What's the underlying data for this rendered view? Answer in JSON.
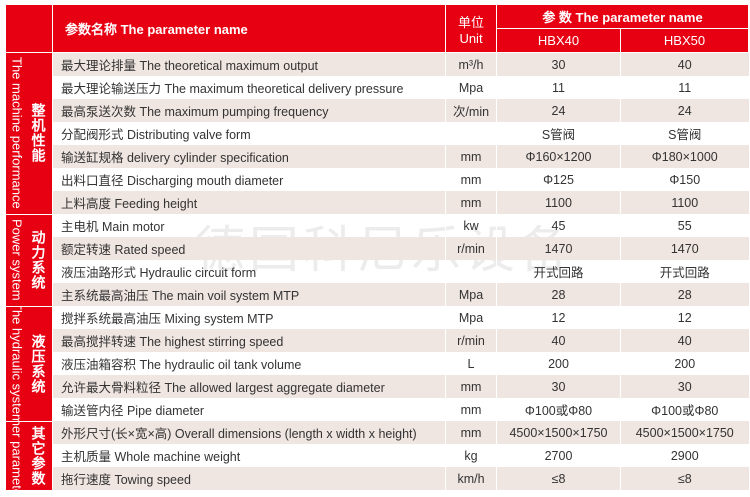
{
  "header": {
    "param_name": "参数名称  The parameter name",
    "unit": "单位",
    "unit_en": "Unit",
    "params": "参 数  The parameter name",
    "models": [
      "HBX40",
      "HBX50"
    ]
  },
  "groups": [
    {
      "zh": "整机性能",
      "en": "The machine performance",
      "rows": [
        {
          "name": "最大理论排量 The theoretical maximum output",
          "unit": "m³/h",
          "v1": "30",
          "v2": "40"
        },
        {
          "name": "最大理论输送压力  The maximum theoretical delivery pressure",
          "unit": "Mpa",
          "v1": "11",
          "v2": "11"
        },
        {
          "name": "最高泵送次数 The maximum pumping frequency",
          "unit": "次/min",
          "v1": "24",
          "v2": "24"
        },
        {
          "name": "分配阀形式 Distributing valve form",
          "unit": "",
          "v1": "S管阀",
          "v2": "S管阀"
        },
        {
          "name": "输送缸规格 delivery cylinder specification",
          "unit": "mm",
          "v1": "Φ160×1200",
          "v2": "Φ180×1000"
        },
        {
          "name": "出料口直径 Discharging mouth diameter",
          "unit": "mm",
          "v1": "Φ125",
          "v2": "Φ150"
        },
        {
          "name": "上料高度 Feeding height",
          "unit": "mm",
          "v1": "1100",
          "v2": "1100"
        }
      ]
    },
    {
      "zh": "动力系统",
      "en": "Power system",
      "rows": [
        {
          "name": "主电机 Main motor",
          "unit": "kw",
          "v1": "45",
          "v2": "55"
        },
        {
          "name": "额定转速 Rated speed",
          "unit": "r/min",
          "v1": "1470",
          "v2": "1470"
        },
        {
          "name": "液压油路形式 Hydraulic circuit form",
          "unit": "",
          "v1": "开式回路",
          "v2": "开式回路"
        },
        {
          "name": "主系统最高油压 The main voil system MTP",
          "unit": "Mpa",
          "v1": "28",
          "v2": "28"
        }
      ]
    },
    {
      "zh": "液压系统",
      "en": "The hydraulic system",
      "rows": [
        {
          "name": "搅拌系统最高油压 Mixing system MTP",
          "unit": "Mpa",
          "v1": "12",
          "v2": "12"
        },
        {
          "name": "最高搅拌转速 The highest stirring speed",
          "unit": "r/min",
          "v1": "40",
          "v2": "40"
        },
        {
          "name": "液压油箱容积 The hydraulic oil tank volume",
          "unit": "L",
          "v1": "200",
          "v2": "200"
        },
        {
          "name": "允许最大骨料粒径 The allowed largest aggregate diameter",
          "unit": "mm",
          "v1": "30",
          "v2": "30"
        },
        {
          "name": "输送管内径 Pipe diameter",
          "unit": "mm",
          "v1": "Φ100或Φ80",
          "v2": "Φ100或Φ80"
        }
      ]
    },
    {
      "zh": "其它参数",
      "en": "Other parameters",
      "rows": [
        {
          "name": "外形尺寸(长×宽×高) Overall dimensions (length x width x height)",
          "unit": "mm",
          "v1": "4500×1500×1750",
          "v2": "4500×1500×1750"
        },
        {
          "name": "主机质量 Whole machine weight",
          "unit": "kg",
          "v1": "2700",
          "v2": "2900"
        },
        {
          "name": "拖行速度 Towing speed",
          "unit": "km/h",
          "v1": "≤8",
          "v2": "≤8"
        }
      ]
    }
  ],
  "watermark": "德国科尼乐设备",
  "colors": {
    "accent": "#e60012",
    "alt_row": "#efe5e1"
  }
}
